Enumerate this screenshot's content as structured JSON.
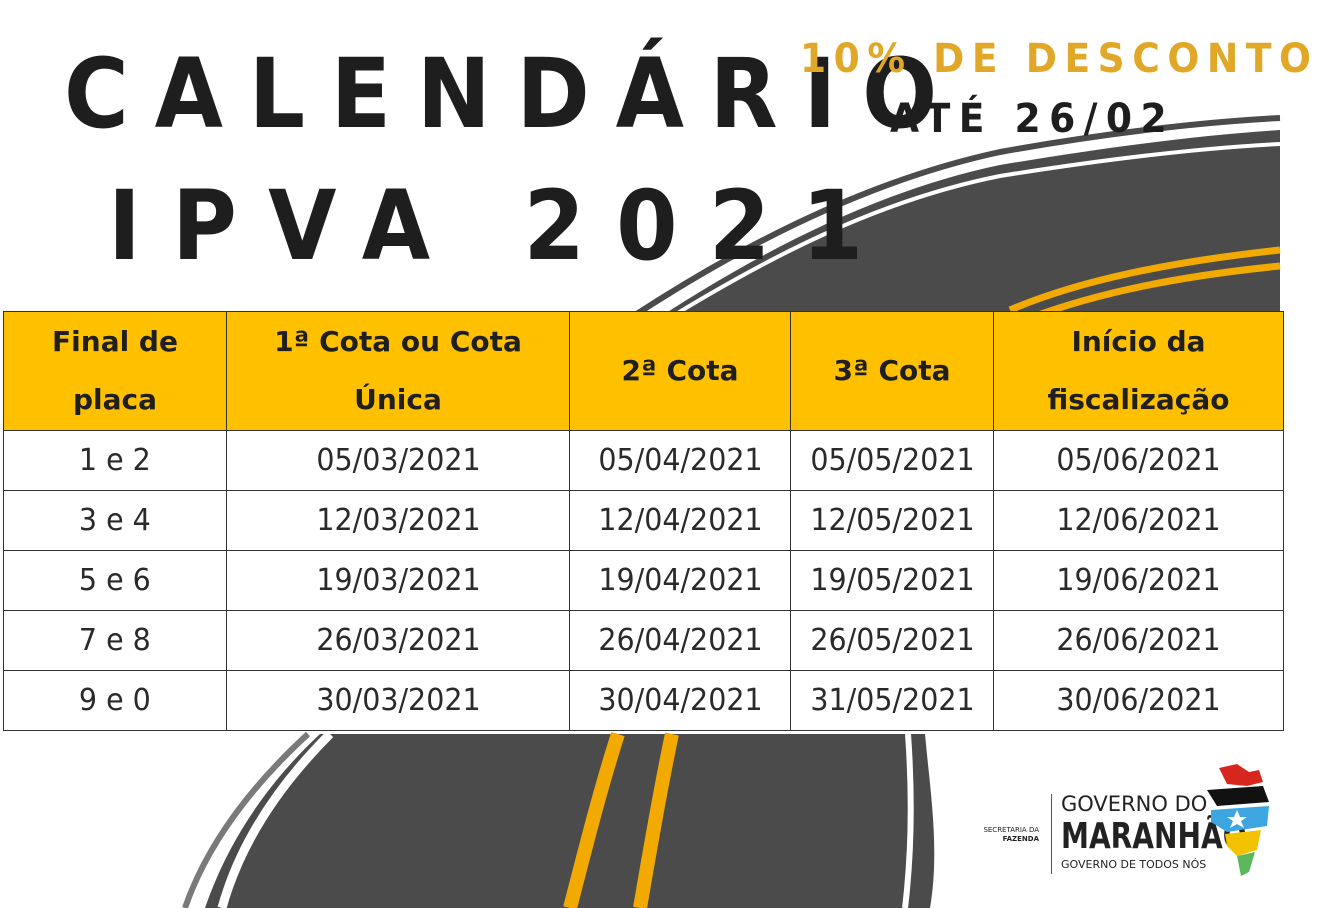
{
  "title": {
    "line1": "CALENDÁRIO",
    "line2": "IPVA 2021"
  },
  "promo": {
    "discount": "10% DE DESCONTO",
    "until": "ATÉ 26/02"
  },
  "table": {
    "headers": [
      [
        "Final de",
        "placa"
      ],
      [
        "1ª Cota ou Cota",
        "Única"
      ],
      [
        "2ª Cota"
      ],
      [
        "3ª Cota"
      ],
      [
        "Início da",
        "fiscalização"
      ]
    ],
    "rows": [
      [
        "1 e 2",
        "05/03/2021",
        "05/04/2021",
        "05/05/2021",
        "05/06/2021"
      ],
      [
        "3 e 4",
        "12/03/2021",
        "12/04/2021",
        "12/05/2021",
        "12/06/2021"
      ],
      [
        "5 e 6",
        "19/03/2021",
        "19/04/2021",
        "19/05/2021",
        "19/06/2021"
      ],
      [
        "7 e 8",
        "26/03/2021",
        "26/04/2021",
        "26/05/2021",
        "26/06/2021"
      ],
      [
        "9 e 0",
        "30/03/2021",
        "30/04/2021",
        "31/05/2021",
        "30/06/2021"
      ]
    ]
  },
  "logo": {
    "secretaria_line1": "SECRETARIA DA",
    "secretaria_line2": "FAZENDA",
    "gov_top": "GOVERNO DO",
    "gov_main": "MARANHÃO",
    "gov_sub": "GOVERNO DE TODOS NÓS"
  },
  "colors": {
    "accent_yellow": "#ffc000",
    "discount_gold": "#e0a826",
    "road_gray": "#4a4a4a",
    "text_dark": "#1e1e1e"
  }
}
